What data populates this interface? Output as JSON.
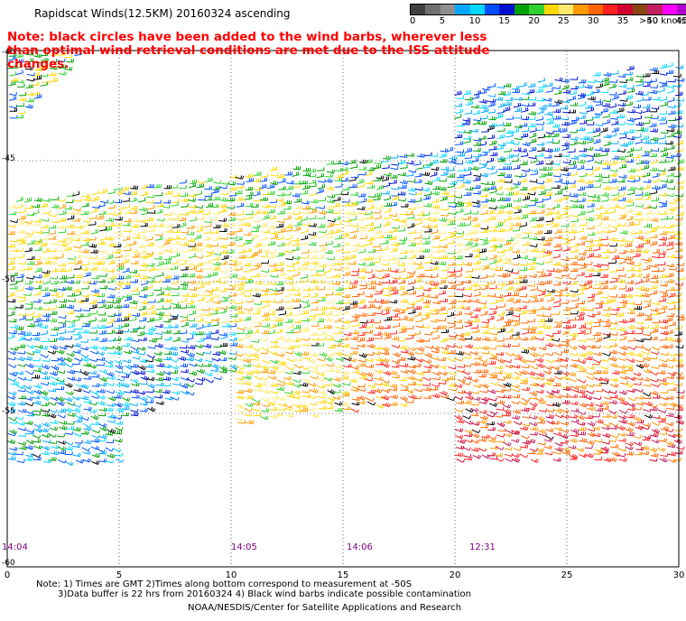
{
  "title": "Rapidscat Winds(12.5KM) 20160324 ascending",
  "note": "Note: black circles have been added to the wind barbs, wherever less than optimal wind retrieval conditions are met due to the ISS attitude changes.",
  "legend": {
    "unit_label": ">50 knots",
    "ticks": [
      "0",
      "5",
      "10",
      "15",
      "20",
      "25",
      "30",
      "35",
      "40",
      "45"
    ],
    "colors": [
      "#404040",
      "#707070",
      "#909090",
      "#00a8ff",
      "#00d8ff",
      "#0050ff",
      "#0010d0",
      "#00a000",
      "#30d030",
      "#ffd700",
      "#ffea70",
      "#ff9900",
      "#ff6600",
      "#ff2020",
      "#d00030",
      "#8b4513",
      "#c02060",
      "#ff00ff",
      "#b000d0",
      "#5a00a0"
    ]
  },
  "axes": {
    "x_ticks": [
      "0",
      "5",
      "10",
      "15",
      "20",
      "25",
      "30"
    ],
    "y_ticks": [
      "-40",
      "-45",
      "-50",
      "-55",
      "-60"
    ]
  },
  "time_labels": [
    "14:04",
    "14:05",
    "14:06",
    "12:31"
  ],
  "footer": {
    "line1": "Note: 1) Times are GMT 2)Times along bottom correspond to measurement at -50S",
    "line2": "3)Data buffer is 22 hrs from 20160324 4) Black wind barbs indicate possible contamination",
    "line3": "NOAA/NESDIS/Center for Satellite Applications and Research"
  }
}
